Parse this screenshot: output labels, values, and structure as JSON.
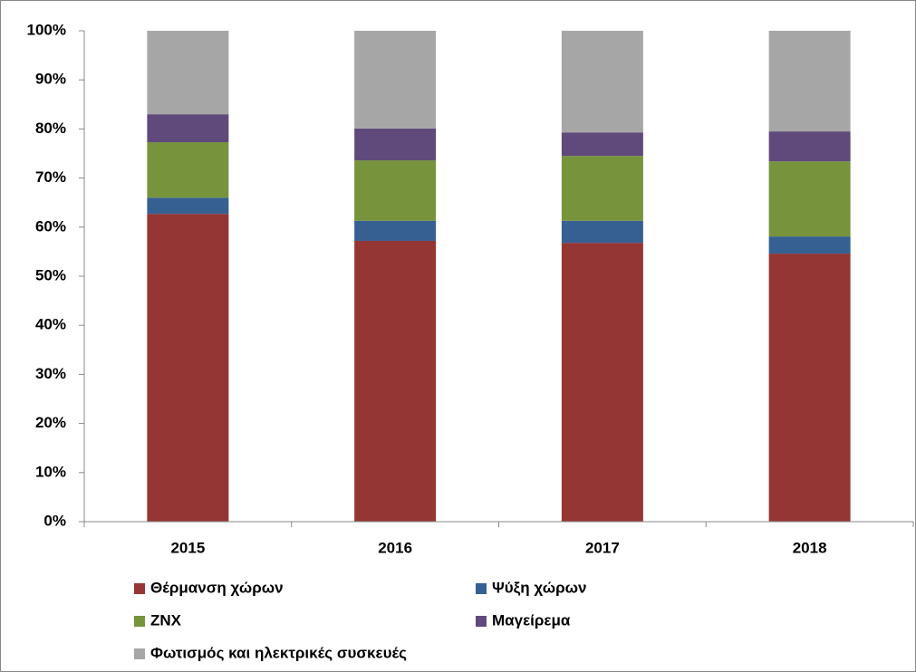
{
  "chart_data": {
    "type": "stacked_bar",
    "categories": [
      "2015",
      "2016",
      "2017",
      "2018"
    ],
    "series": [
      {
        "name": "Θέρμανση χώρων",
        "color": "#943634",
        "values": [
          62.7,
          57.2,
          56.8,
          54.6
        ]
      },
      {
        "name": "Ψύξη χώρων",
        "color": "#376092",
        "values": [
          3.3,
          4.1,
          4.5,
          3.5
        ]
      },
      {
        "name": "ZNX",
        "color": "#77933c",
        "values": [
          11.3,
          12.3,
          13.2,
          15.3
        ]
      },
      {
        "name": "Μαγείρεμα",
        "color": "#604a7b",
        "values": [
          5.7,
          6.5,
          4.8,
          6.1
        ]
      },
      {
        "name": "Φωτισμός και ηλεκτρικές συσκευές",
        "color": "#a6a6a6",
        "values": [
          17.0,
          19.9,
          20.7,
          20.5
        ]
      }
    ],
    "ylim": [
      0,
      100
    ],
    "yticks": [
      {
        "value": 0,
        "label": "0%"
      },
      {
        "value": 10,
        "label": "10%"
      },
      {
        "value": 20,
        "label": "20%"
      },
      {
        "value": 30,
        "label": "30%"
      },
      {
        "value": 40,
        "label": "40%"
      },
      {
        "value": 50,
        "label": "50%"
      },
      {
        "value": 60,
        "label": "60%"
      },
      {
        "value": 70,
        "label": "70%"
      },
      {
        "value": 80,
        "label": "80%"
      },
      {
        "value": 90,
        "label": "90%"
      },
      {
        "value": 100,
        "label": "100%"
      }
    ],
    "grid": false
  }
}
